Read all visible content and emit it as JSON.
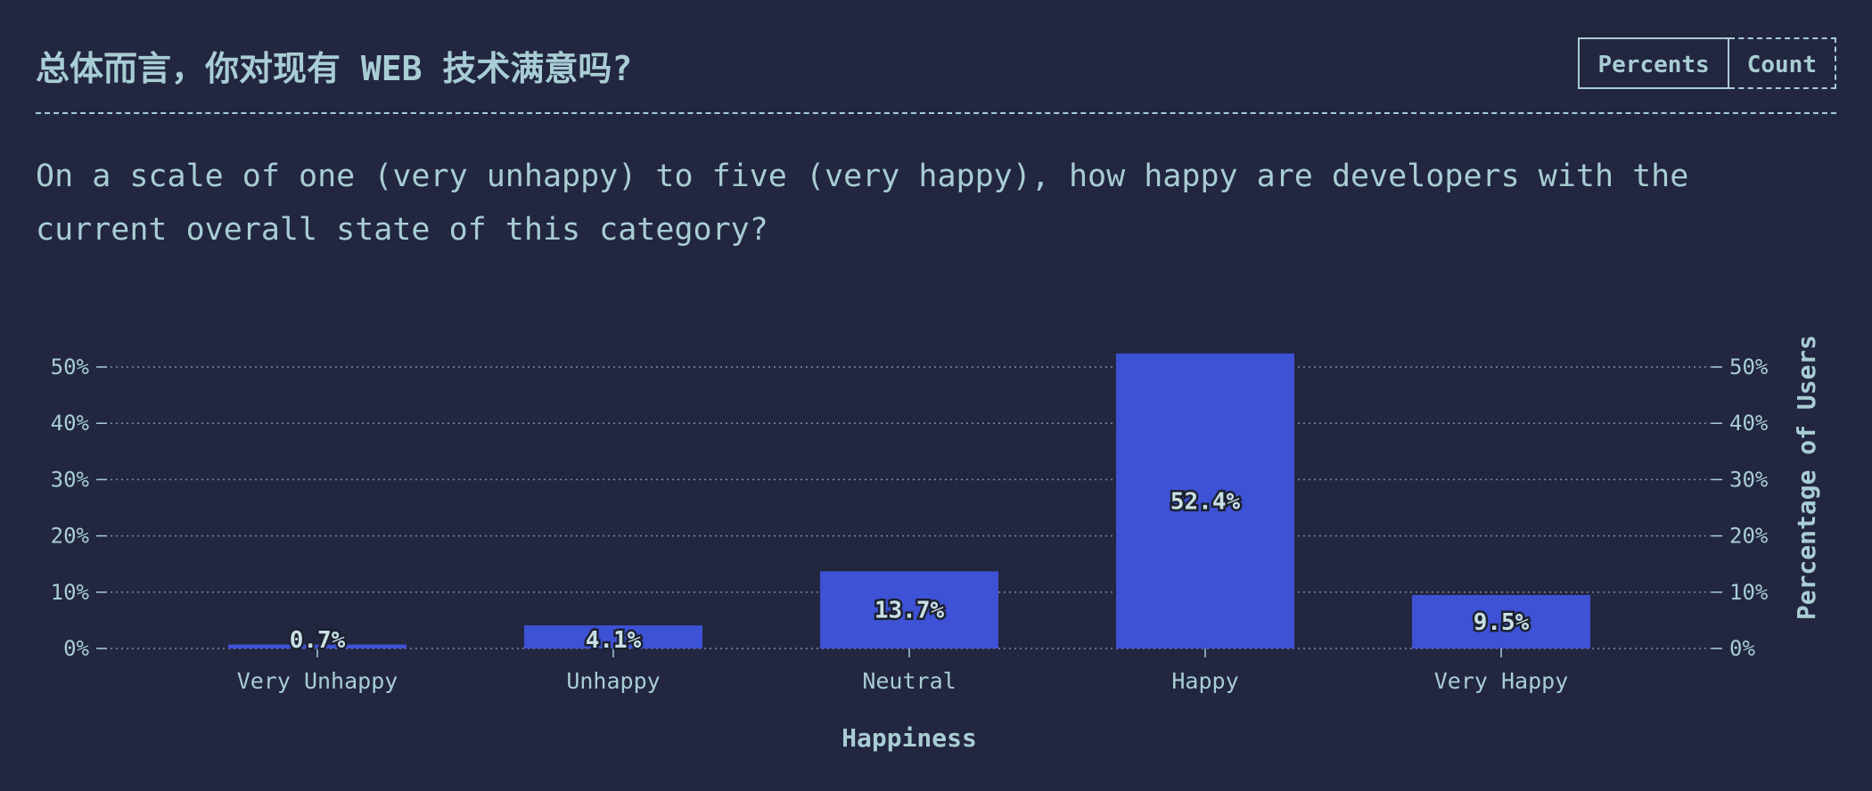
{
  "header": {
    "title": "总体而言，你对现有 WEB 技术满意吗?",
    "toggle": {
      "percents_label": "Percents",
      "count_label": "Count",
      "active": "percents"
    }
  },
  "description": "On a scale of one (very unhappy) to five (very happy), how happy are developers with the current overall state of this category?",
  "colors": {
    "background": "#222640",
    "bar": "#3d52d5",
    "text": "#a8cdd4"
  },
  "chart_data": {
    "type": "bar",
    "categories": [
      "Very Unhappy",
      "Unhappy",
      "Neutral",
      "Happy",
      "Very Happy"
    ],
    "values": [
      0.7,
      4.1,
      13.7,
      52.4,
      9.5
    ],
    "value_labels": [
      "0.7%",
      "4.1%",
      "13.7%",
      "52.4%",
      "9.5%"
    ],
    "xlabel": "Happiness",
    "ylabel": "Percentage of Users",
    "ylim": [
      0,
      50
    ],
    "yticks": [
      0,
      10,
      20,
      30,
      40,
      50
    ],
    "ytick_labels": [
      "0%",
      "10%",
      "20%",
      "30%",
      "40%",
      "50%"
    ],
    "grid": true,
    "y_axis_both_sides": true
  }
}
